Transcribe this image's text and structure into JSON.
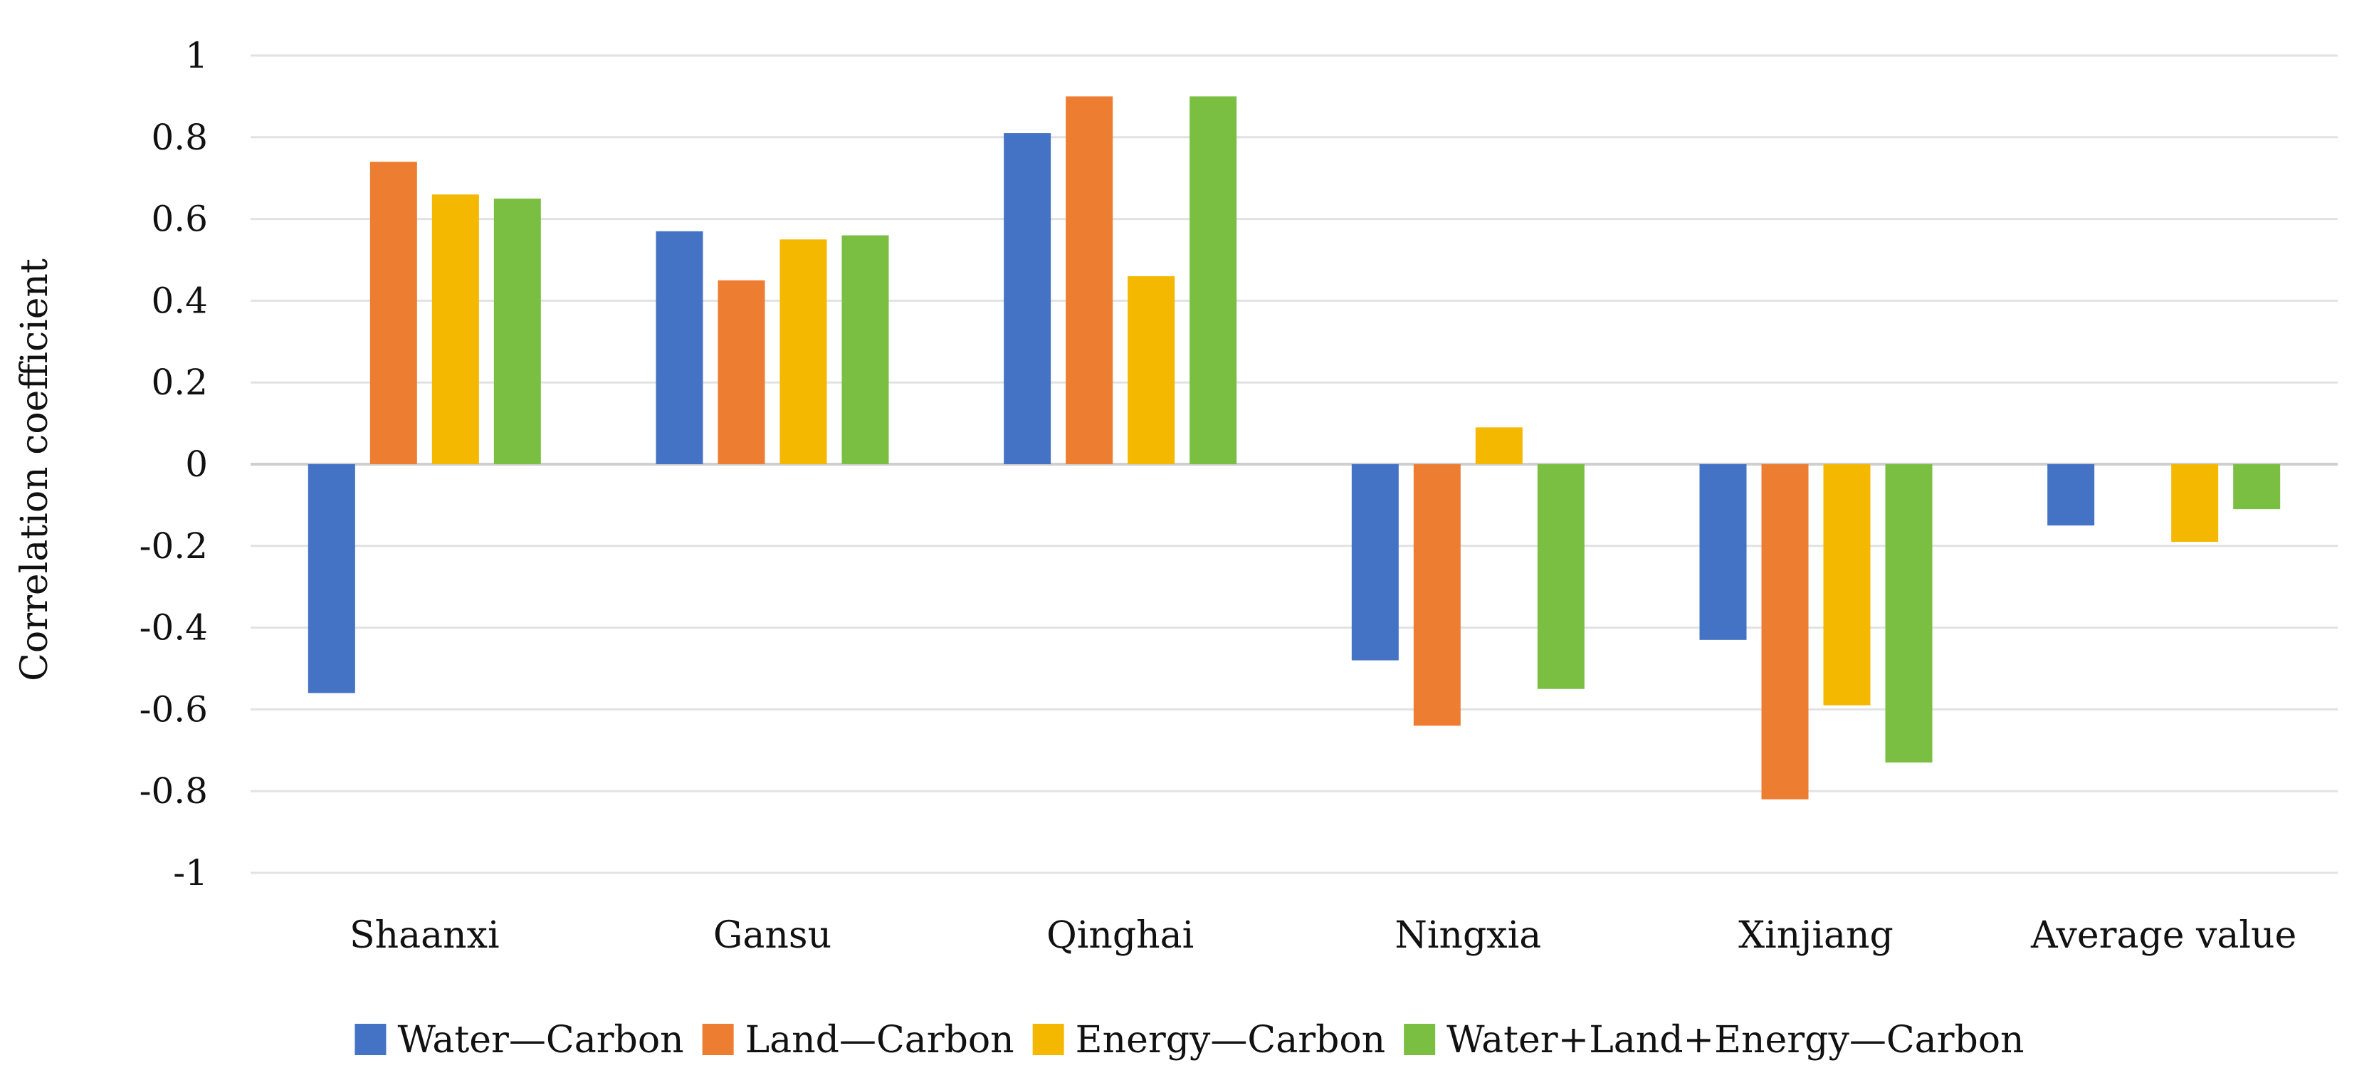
{
  "chart_data": {
    "type": "bar",
    "title": "",
    "xlabel": "",
    "ylabel": "Correlation coefficient",
    "ylim": [
      -1,
      1
    ],
    "yticks": [
      1,
      0.8,
      0.6,
      0.4,
      0.2,
      0,
      -0.2,
      -0.4,
      -0.6,
      -0.8,
      -1
    ],
    "ytick_labels": [
      "1",
      "0.8",
      "0.6",
      "0.4",
      "0.2",
      "0",
      "-0.2",
      "-0.4",
      "-0.6",
      "-0.8",
      "-1"
    ],
    "grid": true,
    "legend_position": "bottom",
    "categories": [
      "Shaanxi",
      "Gansu",
      "Qinghai",
      "Ningxia",
      "Xinjiang",
      "Average value"
    ],
    "series": [
      {
        "name": "Water—Carbon",
        "color": "#4472C4",
        "values": [
          -0.56,
          0.57,
          0.81,
          -0.48,
          -0.43,
          -0.15
        ]
      },
      {
        "name": "Land—Carbon",
        "color": "#ED7D31",
        "values": [
          0.74,
          0.45,
          0.9,
          -0.64,
          -0.82,
          0
        ]
      },
      {
        "name": "Energy—Carbon",
        "color": "#F4B800",
        "values": [
          0.66,
          0.55,
          0.46,
          0.09,
          -0.59,
          -0.19
        ]
      },
      {
        "name": "Water+Land+Energy—Carbon",
        "color": "#7ABF42",
        "values": [
          0.65,
          0.56,
          0.9,
          -0.55,
          -0.73,
          -0.11
        ]
      }
    ]
  }
}
